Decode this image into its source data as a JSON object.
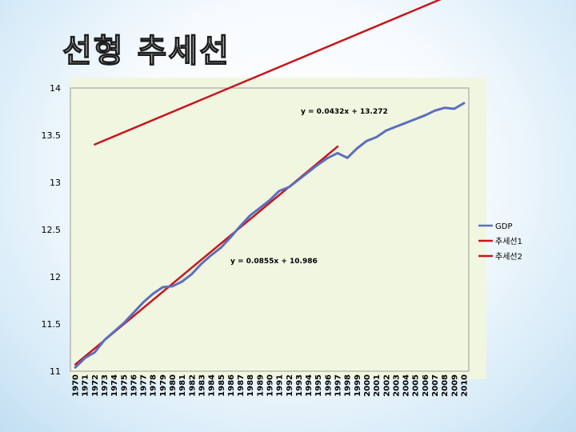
{
  "slide": {
    "title": "선형 추세선"
  },
  "chart_data": {
    "type": "line",
    "x": [
      "1970",
      "1971",
      "1972",
      "1973",
      "1974",
      "1975",
      "1976",
      "1977",
      "1978",
      "1979",
      "1980",
      "1981",
      "1982",
      "1983",
      "1984",
      "1985",
      "1986",
      "1987",
      "1988",
      "1989",
      "1990",
      "1991",
      "1992",
      "1993",
      "1994",
      "1995",
      "1996",
      "1997",
      "1998",
      "1999",
      "2000",
      "2001",
      "2002",
      "2003",
      "2004",
      "2005",
      "2006",
      "2007",
      "2008",
      "2009",
      "2010"
    ],
    "ylim": [
      11,
      14
    ],
    "yticks": [
      "11",
      "11.5",
      "12",
      "12.5",
      "13",
      "13.5",
      "14"
    ],
    "grid": false,
    "legend_position": "right",
    "series": [
      {
        "name": "GDP",
        "color": "#5b6fbf",
        "values": [
          11.04,
          11.14,
          11.2,
          11.33,
          11.42,
          11.51,
          11.62,
          11.73,
          11.82,
          11.89,
          11.9,
          11.95,
          12.03,
          12.14,
          12.23,
          12.31,
          12.42,
          12.54,
          12.65,
          12.73,
          12.81,
          12.91,
          12.95,
          13.03,
          13.11,
          13.19,
          13.26,
          13.31,
          13.26,
          13.36,
          13.44,
          13.48,
          13.55,
          13.59,
          13.63,
          13.67,
          13.71,
          13.76,
          13.79,
          13.78,
          13.84
        ]
      },
      {
        "name": "추세선1",
        "color": "#c8161c",
        "kind": "linear-trend",
        "slope": 0.0855,
        "intercept": 10.986,
        "x_from": 1,
        "x_to": 28,
        "equation": "y = 0.0855x + 10.986"
      },
      {
        "name": "추세선2",
        "color": "#c8161c",
        "kind": "linear-trend",
        "slope": 0.0432,
        "intercept": 13.272,
        "x_from": 3,
        "x_to": 41,
        "equation": "y = 0.0432x + 13.272"
      }
    ]
  }
}
